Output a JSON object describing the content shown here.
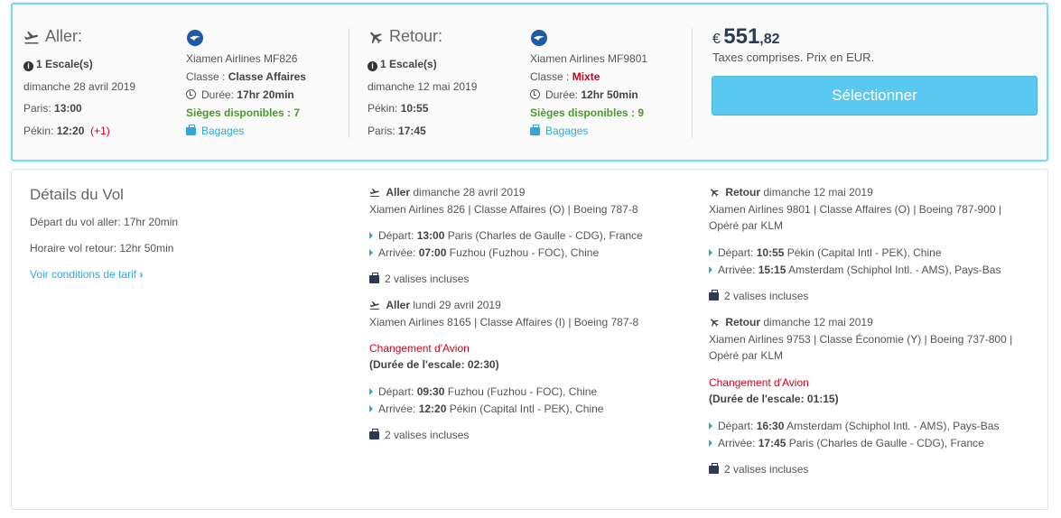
{
  "summary": {
    "outbound": {
      "label": "Aller:",
      "stops": "1 Escale(s)",
      "date": "dimanche 28 avril 2019",
      "dep_city": "Paris:",
      "dep_time": "13:00",
      "arr_city": "Pékin:",
      "arr_time": "12:20",
      "day_offset": "(+1)",
      "airline": "Xiamen Airlines MF826",
      "class_label": "Classe :",
      "class_value": "Classe Affaires",
      "duration_label": "Durée:",
      "duration_value": "17hr 20min",
      "seats": "Sièges disponibles : 7",
      "baggage": "Bagages"
    },
    "return": {
      "label": "Retour:",
      "stops": "1 Escale(s)",
      "date": "dimanche 12 mai 2019",
      "dep_city": "Pékin:",
      "dep_time": "10:55",
      "arr_city": "Paris:",
      "arr_time": "17:45",
      "airline": "Xiamen Airlines MF9801",
      "class_label": "Classe :",
      "class_value": "Mixte",
      "duration_label": "Durée:",
      "duration_value": "12hr 50min",
      "seats": "Sièges disponibles : 9",
      "baggage": "Bagages"
    },
    "price": {
      "currency": "€",
      "integer": "551",
      "cents": ",82",
      "note": "Taxes comprises. Prix en EUR."
    },
    "select_label": "Sélectionner"
  },
  "details": {
    "title": "Détails du Vol",
    "outbound_duration": "Départ du vol aller: 17hr 20min",
    "return_duration": "Horaire vol retour: 12hr 50min",
    "conditions_link": "Voir conditions de tarif",
    "outbound_segments": [
      {
        "direction": "Aller",
        "date": "dimanche 28 avril 2019",
        "info": "Xiamen Airlines 826 | Classe Affaires (O) | Boeing 787-8",
        "dep_label": "Départ:",
        "dep_time": "13:00",
        "dep_place": "Paris (Charles de Gaulle - CDG), France",
        "arr_label": "Arrivée:",
        "arr_time": "07:00",
        "arr_place": "Fuzhou (Fuzhou - FOC), Chine",
        "baggage": "2 valises incluses"
      },
      {
        "direction": "Aller",
        "date": "lundi 29 avril 2019",
        "info": "Xiamen Airlines 8165 | Classe Affaires (I) | Boeing 787-8",
        "change": "Changement d'Avion",
        "layover": "(Durée de l'escale: 02:30)",
        "dep_label": "Départ:",
        "dep_time": "09:30",
        "dep_place": "Fuzhou (Fuzhou - FOC), Chine",
        "arr_label": "Arrivée:",
        "arr_time": "12:20",
        "arr_place": "Pékin (Capital Intl - PEK), Chine",
        "baggage": "2 valises incluses"
      }
    ],
    "return_segments": [
      {
        "direction": "Retour",
        "date": "dimanche 12 mai 2019",
        "info1": "Xiamen Airlines 9801 | Classe Affaires (O) | Boeing 787-900 |",
        "info2": "Opéré par KLM",
        "dep_label": "Départ:",
        "dep_time": "10:55",
        "dep_place": "Pékin (Capital Intl - PEK), Chine",
        "arr_label": "Arrivée:",
        "arr_time": "15:15",
        "arr_place": "Amsterdam (Schiphol Intl. - AMS), Pays-Bas",
        "baggage": "2 valises incluses"
      },
      {
        "direction": "Retour",
        "date": "dimanche 12 mai 2019",
        "info1": "Xiamen Airlines 9753 | Classe Économie (Y) | Boeing 737-800 |",
        "info2": "Opéré par KLM",
        "change": "Changement d'Avion",
        "layover": "(Durée de l'escale: 01:15)",
        "dep_label": "Départ:",
        "dep_time": "16:30",
        "dep_place": "Amsterdam (Schiphol Intl. - AMS), Pays-Bas",
        "arr_label": "Arrivée:",
        "arr_time": "17:45",
        "arr_place": "Paris (Charles de Gaulle - CDG), France",
        "baggage": "2 valises incluses"
      }
    ]
  },
  "colors": {
    "accent": "#2ea8d8",
    "button": "#5bc8ef",
    "border_highlight": "#7fd6e6",
    "green": "#4a9a2a",
    "red": "#d0021b",
    "price": "#2b3a55"
  }
}
